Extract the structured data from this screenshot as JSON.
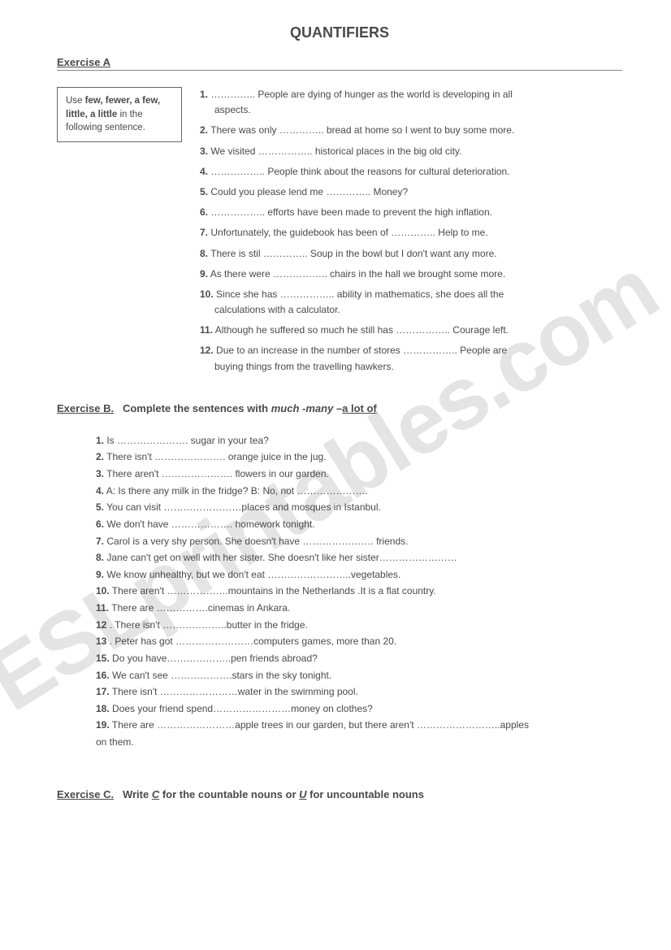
{
  "title": "QUANTIFIERS",
  "watermark": "ESLprintables.com",
  "exA": {
    "heading": "Exercise A",
    "box_pre": "Use ",
    "box_bold": "few, fewer, a few, little, a little",
    "box_post": " in the following sentence.",
    "items": [
      {
        "n": "1.",
        "t": "………….. People are dying of hunger as the world is developing in all",
        "c": "aspects."
      },
      {
        "n": "2.",
        "t": "There was only ………….. bread at home so I went to buy some more."
      },
      {
        "n": "3.",
        "t": "We visited …………….. historical places in the big old city."
      },
      {
        "n": "4.",
        "t": "…………….. People think about the reasons for cultural deterioration."
      },
      {
        "n": "5.",
        "t": "Could you please lend me ………….. Money?"
      },
      {
        "n": "6.",
        "t": "…………….. efforts have been made to prevent the high inflation."
      },
      {
        "n": "7.",
        "t": "Unfortunately, the guidebook has been of ………….. Help to me."
      },
      {
        "n": "8.",
        "t": "There is stil ………….. Soup in the bowl but I don't want any more."
      },
      {
        "n": "9.",
        "t": "As there were …………….. chairs in the hall we brought some more."
      },
      {
        "n": "10.",
        "t": "Since she has …………….. ability in mathematics, she does all the",
        "c": "calculations with a calculator."
      },
      {
        "n": "11.",
        "t": "Although he suffered so much he still has …………….. Courage left."
      },
      {
        "n": "12.",
        "t": "Due to an increase in the number of stores …………….. People are",
        "c": "buying things from the travelling hawkers."
      }
    ]
  },
  "exB": {
    "label": "Exercise B.",
    "mid": "Complete the sentences with ",
    "w1": "much",
    "sep1": " -",
    "w2": "many",
    "sep2": " –",
    "w3": "a lot of",
    "items": [
      {
        "n": "1.",
        "t": "Is …………………. sugar in your tea?"
      },
      {
        "n": "2.",
        "t": "There isn't …………………. orange juice in the jug."
      },
      {
        "n": "3.",
        "t": "There aren't …………………. flowers in our garden."
      },
      {
        "n": "4.",
        "t": "A: Is there any milk in the fridge?  B: No, not …………………."
      },
      {
        "n": "5.",
        "t": "You can visit ……………………places and mosques in Istanbul."
      },
      {
        "n": "6.",
        "t": "We don't have ………………. homework tonight."
      },
      {
        "n": "7.",
        "t": "Carol is a very shy person. She doesn't have …………………. friends."
      },
      {
        "n": "8.",
        "t": "Jane can't get on well with her sister. She doesn't like her sister……………………"
      },
      {
        "n": "9.",
        "t": "We know unhealthy, but we don't eat ……………………..vegetables."
      },
      {
        "n": "10.",
        "t": "There aren't ……………….mountains in the Netherlands .It is a flat country."
      },
      {
        "n": "11.",
        "t": "There are …………….cinemas in Ankara."
      },
      {
        "n": "12",
        "t": ". There isn't ………………..butter in the fridge."
      },
      {
        "n": "13",
        "t": ". Peter has got ……………………computers games, more than 20."
      },
      {
        "n": "15.",
        "t": "Do you have………………..pen friends abroad?"
      },
      {
        "n": "16.",
        "t": "We can't see ……………….stars in the sky tonight."
      },
      {
        "n": "17.",
        "t": "There isn't ……………………water in the swimming pool."
      },
      {
        "n": "18.",
        "t": "Does your friend spend……………………money on clothes?"
      },
      {
        "n": "19.",
        "t": "There are ……………………apple trees in our garden, but there aren't ……………………..apples"
      },
      {
        "n": "",
        "t": "on them."
      }
    ]
  },
  "exC": {
    "label": "Exercise C.",
    "pre": "Write ",
    "c": "C",
    "mid1": " for the countable nouns or ",
    "u": "U",
    "mid2": " for uncountable nouns"
  }
}
